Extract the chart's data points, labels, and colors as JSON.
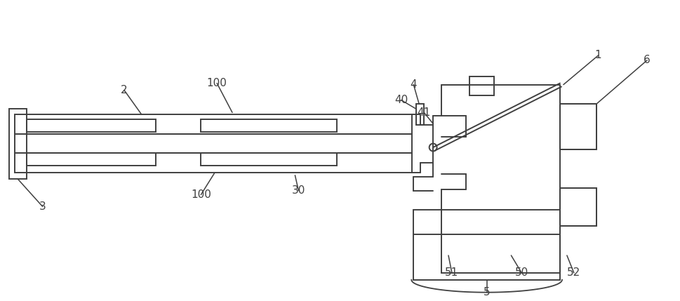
{
  "bg_color": "#ffffff",
  "line_color": "#404040",
  "lw": 1.4,
  "fig_w": 9.69,
  "fig_h": 4.29
}
